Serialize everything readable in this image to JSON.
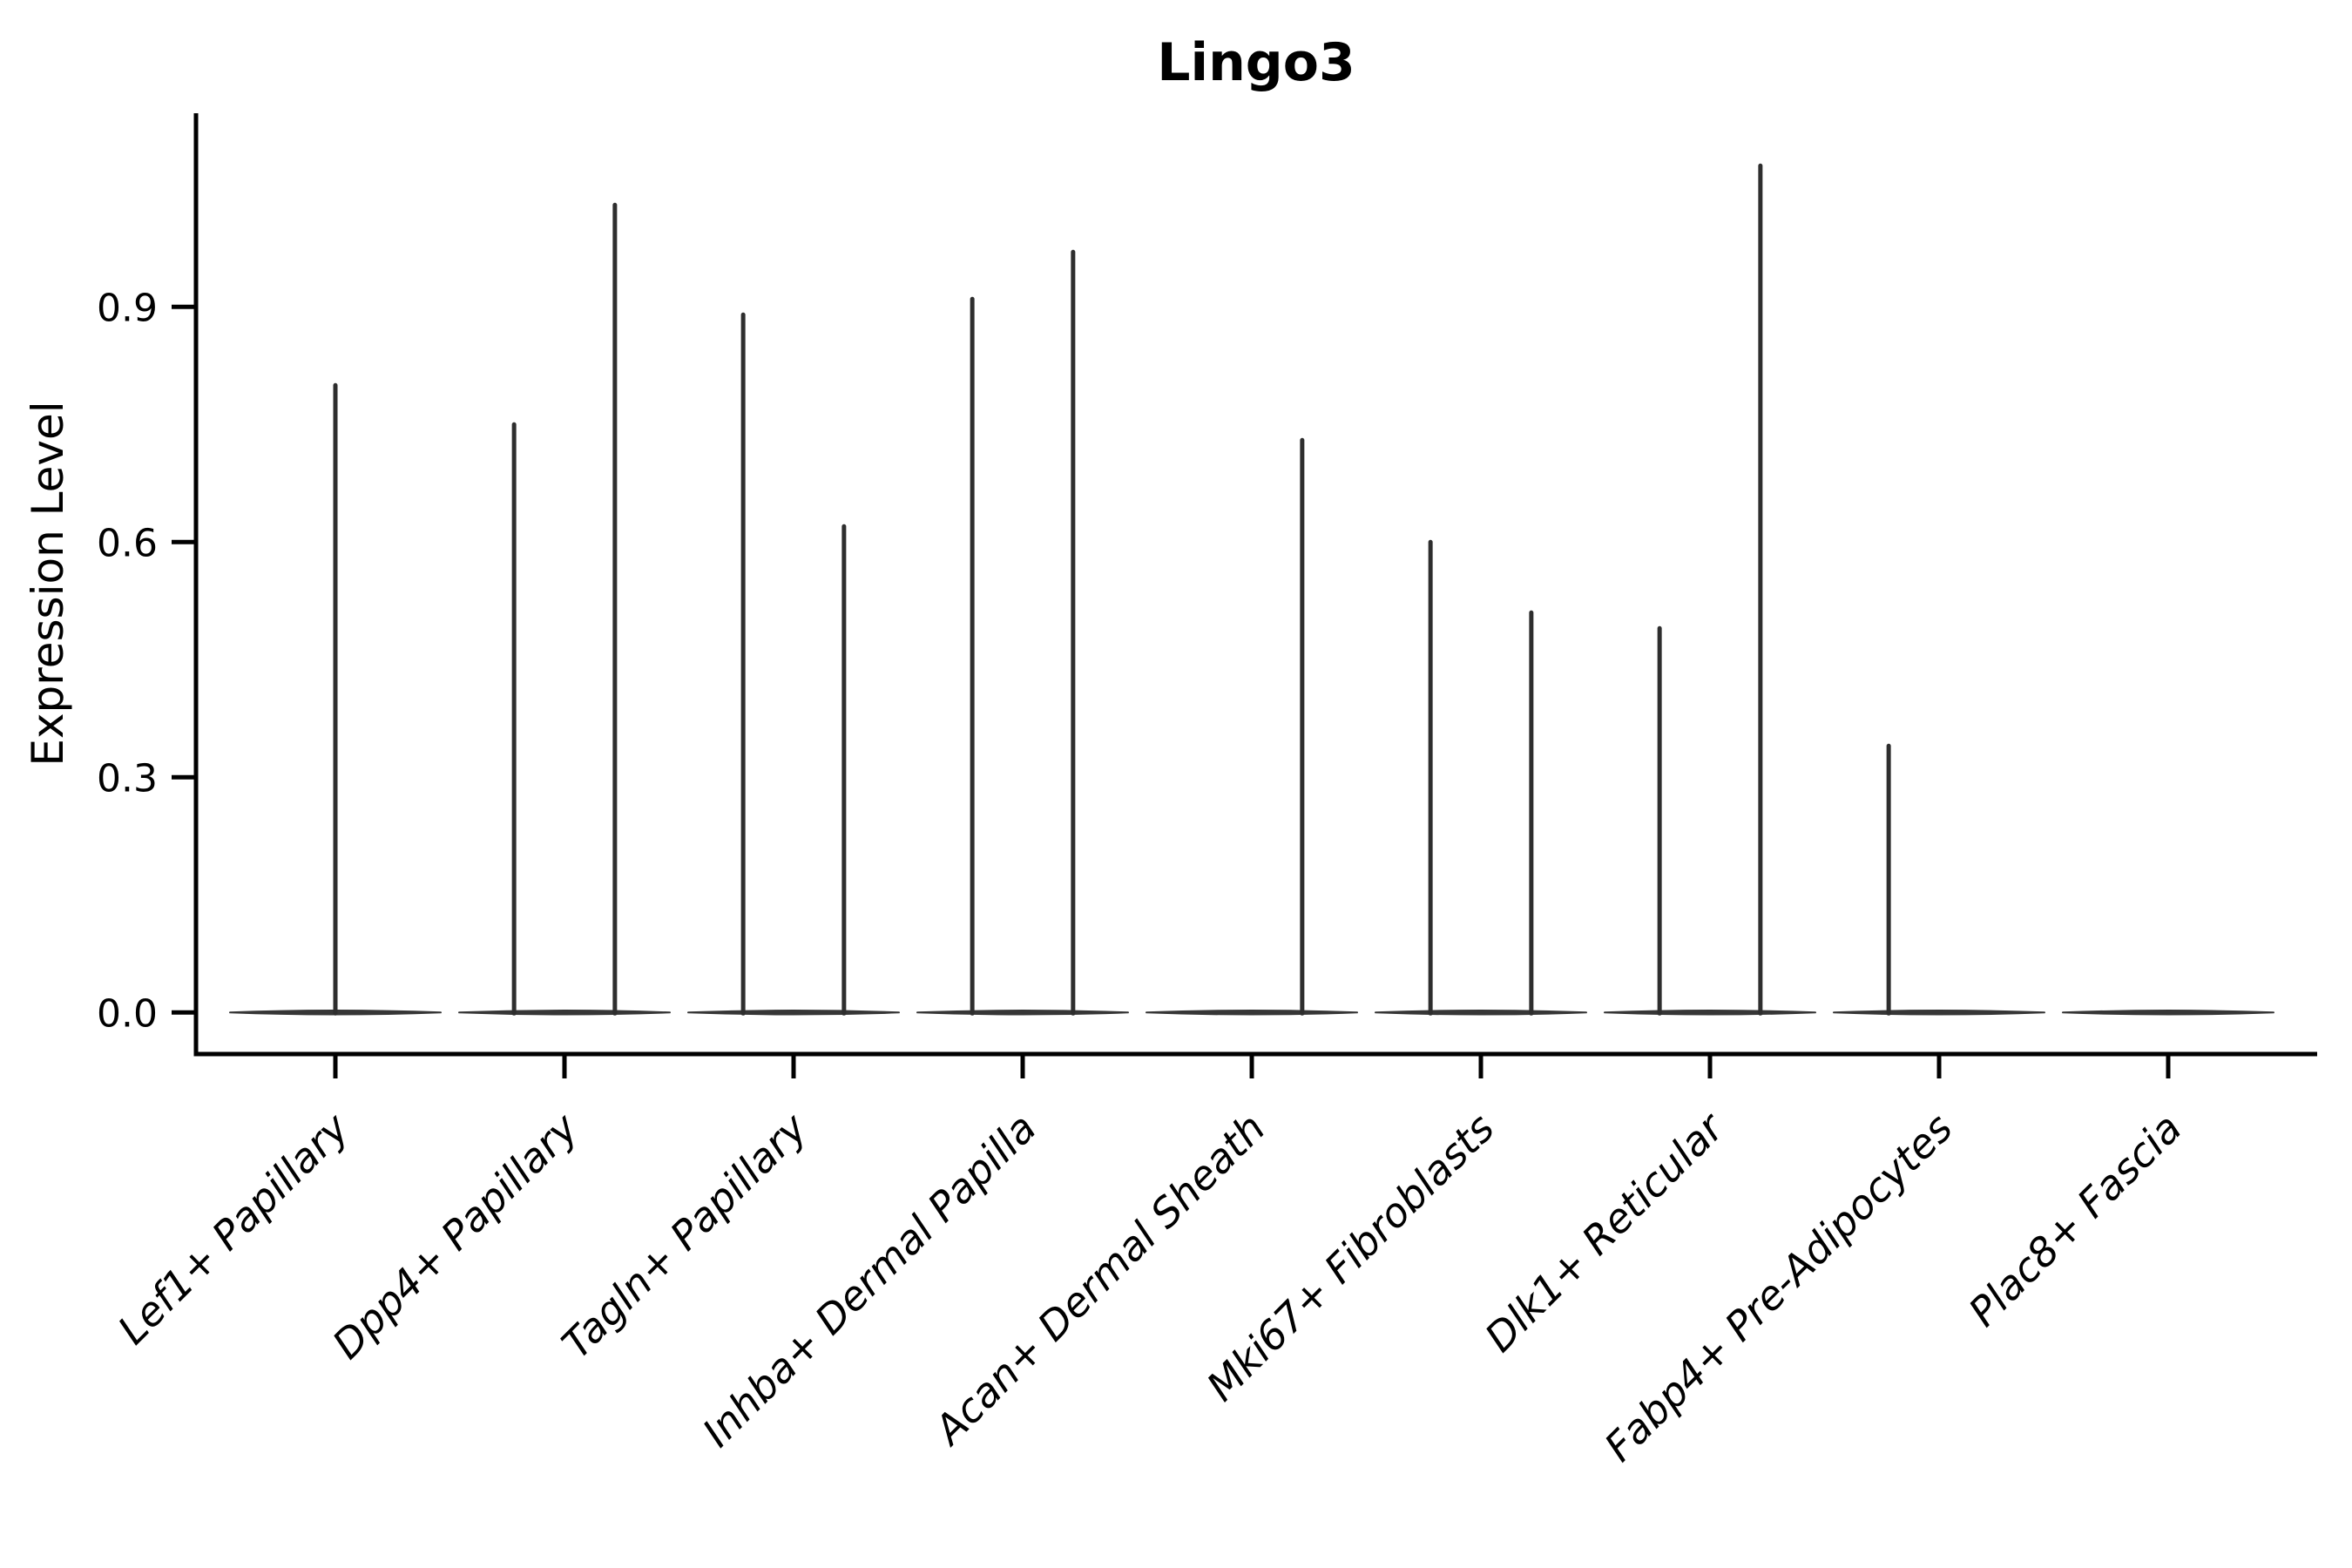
{
  "figure": {
    "background": "#ffffff"
  },
  "chart_data": {
    "type": "violin",
    "title": "Lingo3",
    "xlabel": "",
    "ylabel": "Expression Level",
    "grid": false,
    "legend": null,
    "yticks": [
      0.0,
      0.3,
      0.6,
      0.9
    ],
    "ytick_decimals": 1,
    "ylim": [
      -0.053,
      1.147
    ],
    "axis_color": "#000000",
    "violin_line_color": "#2e2e2e",
    "violin_body_color": "#363636",
    "body_halfwidth": 0.46,
    "baseline_value": 0.0,
    "categories": [
      "Lef1+ Papillary",
      "Dpp4+ Papillary",
      "Tagln+ Papillary",
      "Inhba+ Dermal Papilla",
      "Acan+ Dermal Sheath",
      "Mki67+ Fibroblasts",
      "Dlk1+ Reticular",
      "Fabp4+ Pre-Adipocytes",
      "Plac8+ Fascia"
    ],
    "violins": [
      {
        "category": "Lef1+ Papillary",
        "spikes": [
          {
            "offset": 0.0,
            "max": 0.8
          }
        ]
      },
      {
        "category": "Dpp4+ Papillary",
        "spikes": [
          {
            "offset": -0.22,
            "max": 0.75
          },
          {
            "offset": 0.22,
            "max": 1.03
          }
        ]
      },
      {
        "category": "Tagln+ Papillary",
        "spikes": [
          {
            "offset": -0.22,
            "max": 0.89
          },
          {
            "offset": 0.22,
            "max": 0.62
          }
        ]
      },
      {
        "category": "Inhba+ Dermal Papilla",
        "spikes": [
          {
            "offset": -0.22,
            "max": 0.91
          },
          {
            "offset": 0.22,
            "max": 0.97
          }
        ]
      },
      {
        "category": "Acan+ Dermal Sheath",
        "spikes": [
          {
            "offset": 0.22,
            "max": 0.73
          }
        ]
      },
      {
        "category": "Mki67+ Fibroblasts",
        "spikes": [
          {
            "offset": -0.22,
            "max": 0.6
          },
          {
            "offset": 0.22,
            "max": 0.51
          }
        ]
      },
      {
        "category": "Dlk1+ Reticular",
        "spikes": [
          {
            "offset": -0.22,
            "max": 0.49
          },
          {
            "offset": 0.22,
            "max": 1.08
          }
        ]
      },
      {
        "category": "Fabp4+ Pre-Adipocytes",
        "spikes": [
          {
            "offset": -0.22,
            "max": 0.34
          }
        ]
      },
      {
        "category": "Plac8+ Fascia",
        "spikes": []
      }
    ]
  }
}
